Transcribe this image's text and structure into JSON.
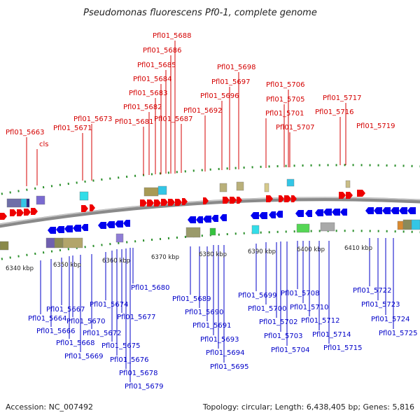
{
  "title": "Pseudomonas fluorescens Pf0-1, complete genome",
  "footer": {
    "accession": "Accession: NC_007492",
    "summary": "Topology: circular; Length: 6,438,405 bp; Genes: 5,816"
  },
  "colors": {
    "forward_gene": "#ee0000",
    "reverse_gene": "#0000ee",
    "forward_label": "#d40000",
    "reverse_label": "#0000c8",
    "backbone": "#8a8a8a",
    "tick_dots": "#2a8f2a"
  },
  "scale_ticks": [
    "6340 kbp",
    "6350 kbp",
    "6360 kbp",
    "6370 kbp",
    "6380 kbp",
    "6390 kbp",
    "6400 kbp",
    "6410 kbp"
  ],
  "forward_genes": [
    {
      "name": "Pfl01_5663"
    },
    {
      "name": "cls"
    },
    {
      "name": "Pfl01_5671"
    },
    {
      "name": "Pfl01_5673"
    },
    {
      "name": "Pfl01_5681"
    },
    {
      "name": "Pfl01_5682"
    },
    {
      "name": "Pfl01_5683"
    },
    {
      "name": "Pfl01_5684"
    },
    {
      "name": "Pfl01_5685"
    },
    {
      "name": "Pfl01_5686"
    },
    {
      "name": "Pfl01_5688"
    },
    {
      "name": "Pfl01_5687"
    },
    {
      "name": "Pfl01_5692"
    },
    {
      "name": "Pfl01_5696"
    },
    {
      "name": "Pfl01_5697"
    },
    {
      "name": "Pfl01_5698"
    },
    {
      "name": "Pfl01_5701"
    },
    {
      "name": "Pfl01_5705"
    },
    {
      "name": "Pfl01_5706"
    },
    {
      "name": "Pfl01_5707"
    },
    {
      "name": "Pfl01_5716"
    },
    {
      "name": "Pfl01_5717"
    },
    {
      "name": "Pfl01_5719"
    }
  ],
  "reverse_genes": [
    {
      "name": "Pfl01_5664"
    },
    {
      "name": "Pfl01_5666"
    },
    {
      "name": "Pfl01_5667"
    },
    {
      "name": "Pfl01_5668"
    },
    {
      "name": "Pfl01_5669"
    },
    {
      "name": "Pfl01_5670"
    },
    {
      "name": "Pfl01_5672"
    },
    {
      "name": "Pfl01_5674"
    },
    {
      "name": "Pfl01_5675"
    },
    {
      "name": "Pfl01_5676"
    },
    {
      "name": "Pfl01_5677"
    },
    {
      "name": "Pfl01_5678"
    },
    {
      "name": "Pfl01_5679"
    },
    {
      "name": "Pfl01_5680"
    },
    {
      "name": "Pfl01_5689"
    },
    {
      "name": "Pfl01_5690"
    },
    {
      "name": "Pfl01_5691"
    },
    {
      "name": "Pfl01_5693"
    },
    {
      "name": "Pfl01_5694"
    },
    {
      "name": "Pfl01_5695"
    },
    {
      "name": "Pfl01_5699"
    },
    {
      "name": "Pfl01_5700"
    },
    {
      "name": "Pfl01_5702"
    },
    {
      "name": "Pfl01_5703"
    },
    {
      "name": "Pfl01_5704"
    },
    {
      "name": "Pfl01_5708"
    },
    {
      "name": "Pfl01_5710"
    },
    {
      "name": "Pfl01_5712"
    },
    {
      "name": "Pfl01_5714"
    },
    {
      "name": "Pfl01_5715"
    },
    {
      "name": "Pfl01_5722"
    },
    {
      "name": "Pfl01_5723"
    },
    {
      "name": "Pfl01_5724"
    },
    {
      "name": "Pfl01_5725"
    }
  ]
}
